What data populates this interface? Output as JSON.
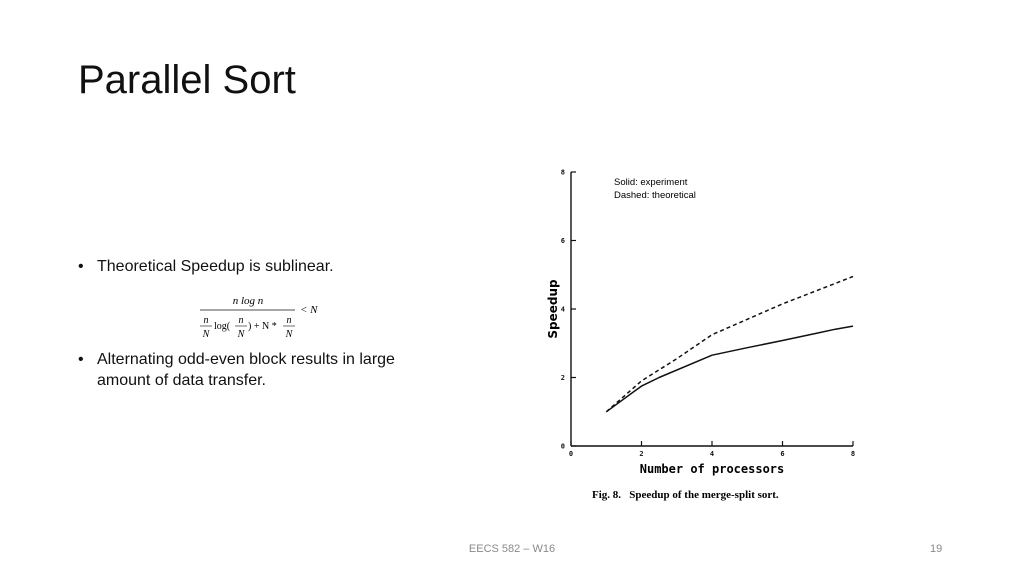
{
  "slide": {
    "title": "Parallel Sort",
    "bullets": [
      "Theoretical Speedup is sublinear.",
      "Alternating odd-even block results in large amount of data transfer."
    ],
    "bullet_marker": "•",
    "formula": {
      "numerator": "n log n",
      "rhs": "< N",
      "term1_num": "n",
      "term1_den": "N",
      "log_text": "log(",
      "term2_num": "n",
      "term2_den": "N",
      "plus_text": ") + N *",
      "term3_num": "n",
      "term3_den": "N"
    },
    "footer": "EECS 582 – W16",
    "page_number": "19"
  },
  "chart_data": {
    "type": "line",
    "xlabel": "Number of processors",
    "ylabel": "Speedup",
    "caption": "Fig. 8.   Speedup of the merge-split sort.",
    "annotation_lines": [
      "Solid: experiment",
      "Dashed: theoretical"
    ],
    "xlim": [
      0,
      8
    ],
    "ylim": [
      0,
      8
    ],
    "x_ticks": [
      0,
      2,
      4,
      6,
      8
    ],
    "y_ticks": [
      0,
      2,
      4,
      6,
      8
    ],
    "grid": false,
    "series": [
      {
        "name": "experiment",
        "style": "solid",
        "x": [
          1,
          2,
          2.5,
          4,
          5,
          6,
          7,
          7.5,
          8
        ],
        "y": [
          1,
          1.75,
          2.0,
          2.65,
          2.87,
          3.08,
          3.3,
          3.41,
          3.5
        ]
      },
      {
        "name": "theoretical",
        "style": "dashed",
        "x": [
          1,
          2,
          3,
          4,
          5,
          6,
          7,
          8
        ],
        "y": [
          1,
          1.9,
          2.55,
          3.25,
          3.7,
          4.15,
          4.55,
          4.95
        ]
      }
    ],
    "colors": {
      "line": "#111111",
      "axis": "#111111"
    }
  }
}
